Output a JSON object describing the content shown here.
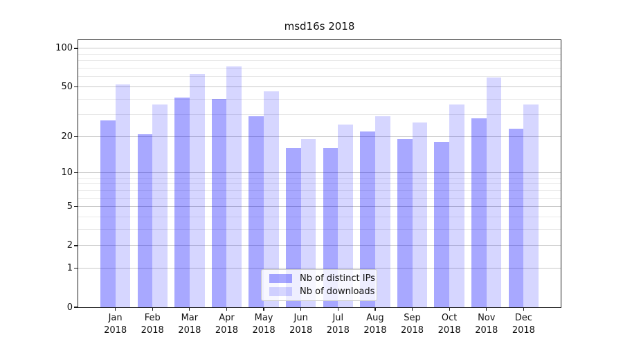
{
  "title": "msd16s 2018",
  "chart_data": {
    "type": "bar",
    "title": "msd16s 2018",
    "categories": [
      "Jan 2018",
      "Feb 2018",
      "Mar 2018",
      "Apr 2018",
      "May 2018",
      "Jun 2018",
      "Jul 2018",
      "Aug 2018",
      "Sep 2018",
      "Oct 2018",
      "Nov 2018",
      "Dec 2018"
    ],
    "series": [
      {
        "name": "Nb of distinct IPs",
        "color": "#aaaaff",
        "fill": "rgba(0,0,255,0.34)",
        "values": [
          27,
          21,
          41,
          40,
          29,
          16,
          16,
          22,
          19,
          18,
          28,
          23
        ]
      },
      {
        "name": "Nb of downloads",
        "color": "#d9d9ff",
        "fill": "rgba(0,0,255,0.16)",
        "values": [
          52,
          36,
          63,
          72,
          46,
          19,
          25,
          29,
          26,
          36,
          59,
          36
        ]
      }
    ],
    "yscale": "log1p",
    "ylim": [
      0,
      116
    ],
    "y_major_ticks": [
      0,
      1,
      2,
      5,
      10,
      20,
      50,
      100
    ],
    "y_minor_ticks": [
      3,
      4,
      6,
      7,
      8,
      9,
      30,
      40,
      60,
      70,
      80,
      90
    ],
    "grid": true,
    "legend_position": "lower center"
  }
}
